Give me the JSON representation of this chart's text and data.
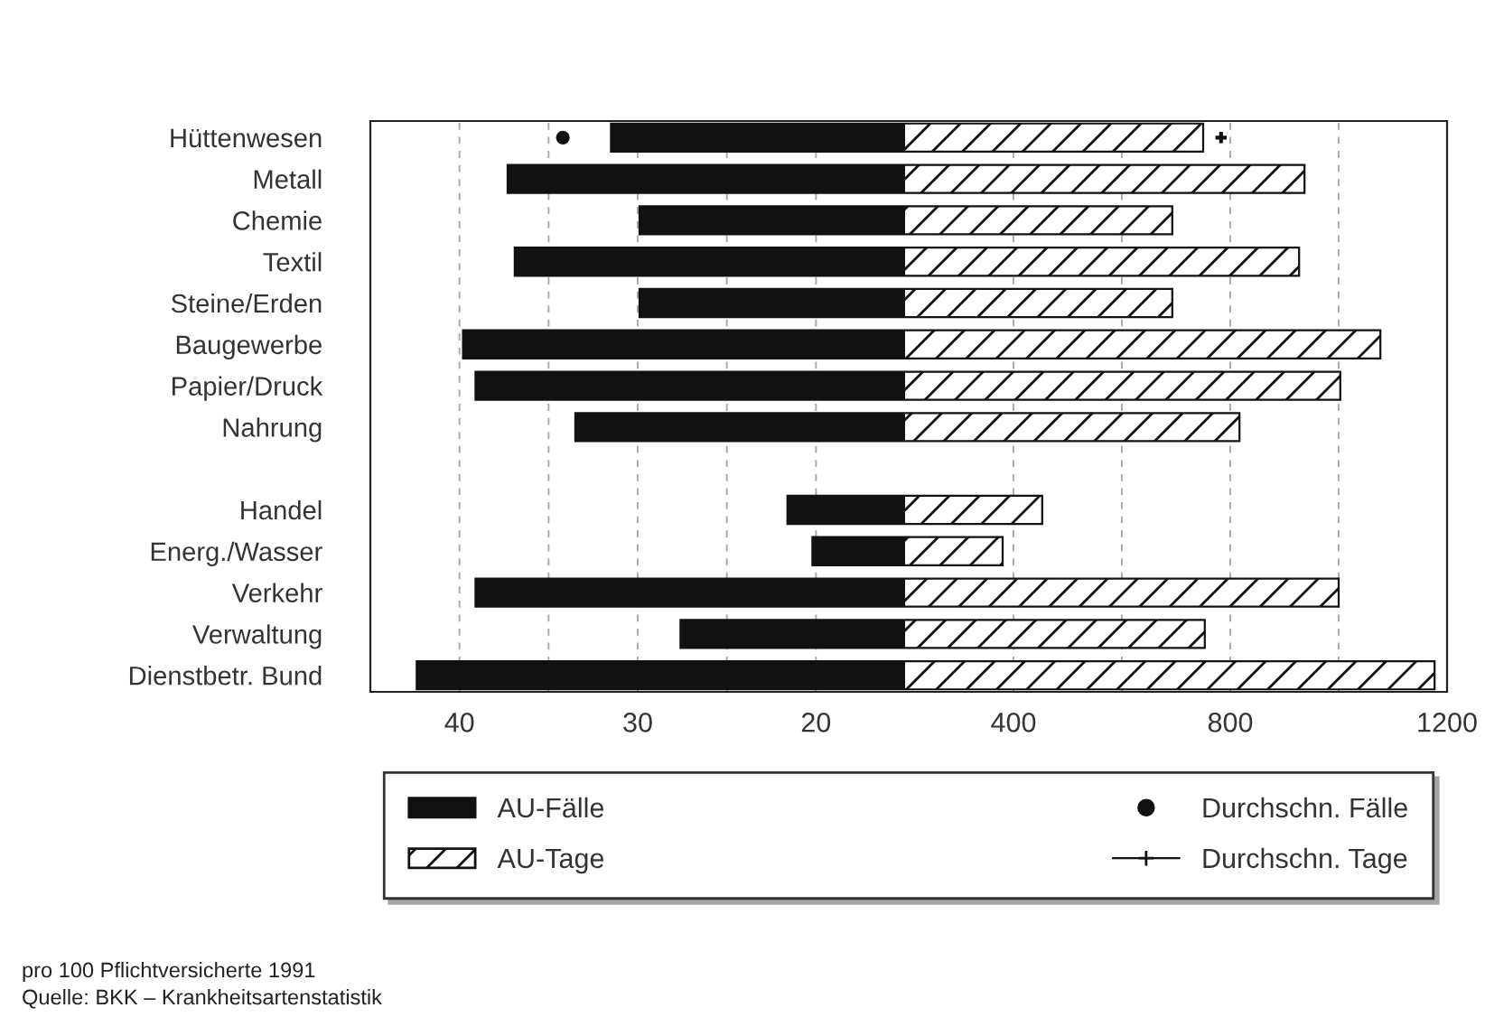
{
  "chart_data": [
    {
      "type": "bar",
      "orientation": "horizontal",
      "categories": [
        "Hüttenwesen",
        "Metall",
        "Chemie",
        "Textil",
        "Steine/Erden",
        "Baugewerbe",
        "Papier/Druck",
        "Nahrung",
        null,
        "Handel",
        "Energ./Wasser",
        "Verkehr",
        "Verwaltung",
        "Dienstbetr. Bund"
      ],
      "series": [
        {
          "name": "AU-Fälle",
          "color": "#111111",
          "values": [
            31.5,
            37.3,
            29.9,
            36.9,
            29.9,
            39.8,
            39.1,
            33.5,
            null,
            21.6,
            20.2,
            39.1,
            27.6,
            42.4
          ]
        },
        {
          "name": "Durchschn. Fälle",
          "type": "scatter",
          "marker": "circle",
          "color": "#111111",
          "values": [
            34.2,
            null,
            null,
            null,
            null,
            null,
            null,
            null,
            null,
            null,
            null,
            null,
            null,
            null
          ]
        }
      ],
      "xlim": [
        45,
        15
      ],
      "xticks": [
        40,
        {
          "value": 35,
          "label": null
        },
        30,
        {
          "value": 25,
          "label": null
        },
        20
      ],
      "grid": "x",
      "legend": "bottom",
      "tick_labels": "xy",
      "annotations": [
        "pro 100 Pflichtversicherte 1991",
        "Quelle: BKK – Krankheitsartenstatistik"
      ]
    },
    {
      "type": "bar",
      "orientation": "horizontal",
      "legend": "bottom",
      "series": [
        {
          "name": "AU-Tage",
          "color": "#111111",
          "values": [
            750,
            937,
            693,
            927,
            693,
            1077,
            1003,
            817,
            null,
            453,
            380,
            1000,
            753,
            1177
          ]
        },
        {
          "name": "Durchschn. Tage",
          "type": "scatter",
          "marker": "cross",
          "color": "#111111",
          "values": [
            783,
            null,
            null,
            null,
            null,
            null,
            null,
            null,
            null,
            null,
            null,
            null,
            null,
            null
          ]
        }
      ],
      "xlim": [
        200,
        1200
      ],
      "xticks": [
        400,
        {
          "value": 600,
          "label": null
        },
        800,
        {
          "value": 1000,
          "label": null
        },
        1200
      ],
      "grid": "x",
      "tick_labels": "x"
    }
  ]
}
